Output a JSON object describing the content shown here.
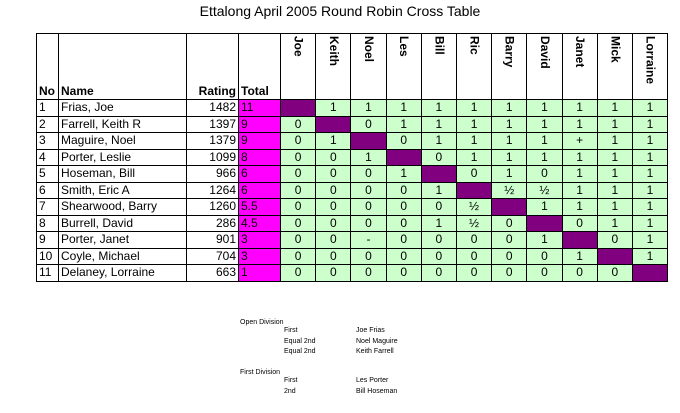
{
  "title": "Ettalong April 2005 Round Robin Cross Table",
  "table": {
    "headers": [
      "No",
      "Name",
      "Rating",
      "Total"
    ],
    "players": [
      "Joe",
      "Keith",
      "Noel",
      "Les",
      "Bill",
      "Ric",
      "Barry",
      "David",
      "Janet",
      "Mick",
      "Lorraine"
    ],
    "rows": [
      {
        "no": 1,
        "name": "Frias, Joe",
        "rating": 1482,
        "total": 11,
        "results": [
          null,
          1,
          1,
          1,
          1,
          1,
          1,
          1,
          1,
          1,
          1
        ]
      },
      {
        "no": 2,
        "name": "Farrell, Keith R",
        "rating": 1397,
        "total": 9,
        "results": [
          0,
          null,
          0,
          1,
          1,
          1,
          1,
          1,
          1,
          1,
          1
        ]
      },
      {
        "no": 3,
        "name": "Maguire, Noel",
        "rating": 1379,
        "total": 9,
        "results": [
          0,
          1,
          null,
          0,
          1,
          1,
          1,
          1,
          "+",
          1,
          1
        ]
      },
      {
        "no": 4,
        "name": "Porter, Leslie",
        "rating": 1099,
        "total": 8,
        "results": [
          0,
          0,
          1,
          null,
          0,
          1,
          1,
          1,
          1,
          1,
          1
        ]
      },
      {
        "no": 5,
        "name": "Hoseman, Bill",
        "rating": 966,
        "total": 6,
        "results": [
          0,
          0,
          0,
          1,
          null,
          0,
          1,
          0,
          1,
          1,
          1
        ]
      },
      {
        "no": 6,
        "name": "Smith, Eric A",
        "rating": 1264,
        "total": 6,
        "results": [
          0,
          0,
          0,
          0,
          1,
          null,
          "½",
          "½",
          1,
          1,
          1
        ]
      },
      {
        "no": 7,
        "name": "Shearwood, Barry",
        "rating": 1260,
        "total": 5.5,
        "results": [
          0,
          0,
          0,
          0,
          0,
          "½",
          null,
          1,
          1,
          1,
          1
        ]
      },
      {
        "no": 8,
        "name": "Burrell, David",
        "rating": 286,
        "total": 4.5,
        "results": [
          0,
          0,
          0,
          0,
          1,
          "½",
          0,
          null,
          0,
          1,
          1
        ]
      },
      {
        "no": 9,
        "name": "Porter, Janet",
        "rating": 901,
        "total": 3,
        "results": [
          0,
          0,
          "-",
          0,
          0,
          0,
          0,
          1,
          null,
          0,
          1
        ]
      },
      {
        "no": 10,
        "name": "Coyle, Michael",
        "rating": 704,
        "total": 3,
        "results": [
          0,
          0,
          0,
          0,
          0,
          0,
          0,
          0,
          1,
          null,
          1
        ]
      },
      {
        "no": 11,
        "name": "Delaney, Lorraine",
        "rating": 663,
        "total": 1,
        "results": [
          0,
          0,
          0,
          0,
          0,
          0,
          0,
          0,
          0,
          0,
          null
        ]
      }
    ]
  },
  "notes": [
    {
      "title": "Open Division",
      "places": [
        [
          "First",
          "Joe Frias"
        ],
        [
          "Equal 2nd",
          "Noel Maguire"
        ],
        [
          "Equal 2nd",
          "Keith Farrell"
        ]
      ]
    },
    {
      "title": "First Division",
      "places": [
        [
          "First",
          "Les Porter"
        ],
        [
          "2nd",
          "Bill Hoseman"
        ]
      ]
    }
  ]
}
